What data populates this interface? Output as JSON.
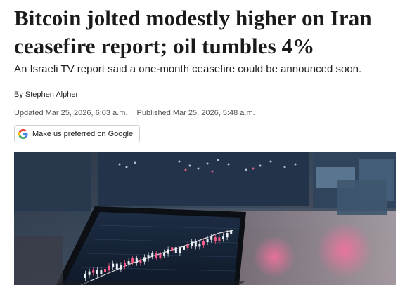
{
  "article": {
    "headline": "Bitcoin jolted modestly higher on Iran ceasefire report; oil tumbles 4%",
    "dek": "An Israeli TV report said a one-month ceasefire could be announced soon.",
    "byline_prefix": "By",
    "author": "Stephen Alpher",
    "updated": "Updated Mar 25, 2026, 6:03 a.m.",
    "published": "Published Mar 25, 2026, 5:48 a.m."
  },
  "preferred_button": {
    "label": "Make us preferred on Google",
    "icon": "google-g-icon"
  },
  "hero_image": {
    "subject": "laptop-trading-chart"
  },
  "colors": {
    "text": "#1a1a1a",
    "meta": "#555555",
    "candle_up": "#e9eef3",
    "candle_down": "#ff5b8a"
  }
}
